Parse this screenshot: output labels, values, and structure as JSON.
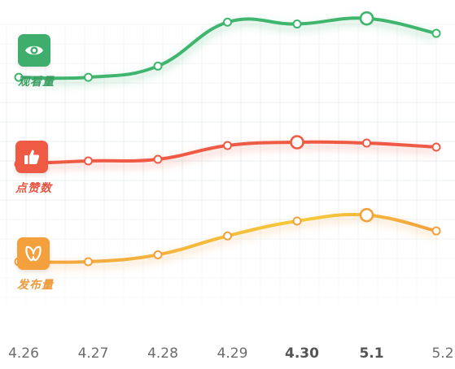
{
  "chart_data": {
    "type": "line",
    "categories": [
      "4.26",
      "4.27",
      "4.28",
      "4.29",
      "4.30",
      "5.1",
      "5.2"
    ],
    "emphasized_categories": [
      "4.30",
      "5.1"
    ],
    "grid": true,
    "legend_placement": "left",
    "series": [
      {
        "name": "观看量",
        "color": "#3fb56e",
        "icon": "eye-icon",
        "values": [
          0.26,
          0.26,
          0.38,
          0.85,
          0.83,
          0.89,
          0.73
        ],
        "highlight_index": 5
      },
      {
        "name": "点赞数",
        "color": "#ef5a45",
        "icon": "thumbs-up-icon",
        "values": [
          0.58,
          0.62,
          0.64,
          0.81,
          0.85,
          0.84,
          0.79
        ],
        "highlight_index": 4
      },
      {
        "name": "发布量",
        "color": "#f3a03d",
        "color_end": "#f5c93a",
        "icon": "butterfly-icon",
        "values": [
          0.41,
          0.41,
          0.48,
          0.67,
          0.82,
          0.88,
          0.72
        ],
        "highlight_index": 5
      }
    ]
  }
}
